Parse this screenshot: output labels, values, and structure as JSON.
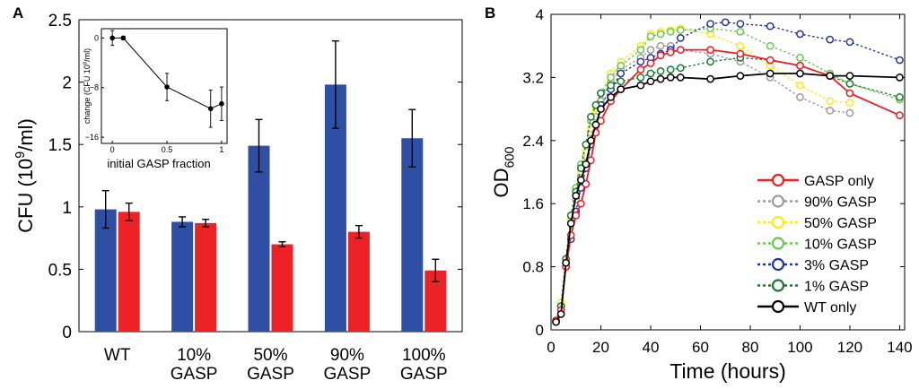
{
  "chart_data": [
    {
      "type": "bar",
      "panel_label": "A",
      "ylabel_parts": [
        "CFU (10",
        "9",
        "/ml)"
      ],
      "ylim": [
        0,
        2.5
      ],
      "yticks": [
        "0",
        "0.5",
        "1",
        "1.5",
        "2",
        "2.5"
      ],
      "categories": [
        [
          "WT"
        ],
        [
          "10%",
          "GASP"
        ],
        [
          "50%",
          "GASP"
        ],
        [
          "90%",
          "GASP"
        ],
        [
          "100%",
          "GASP"
        ]
      ],
      "series": [
        {
          "color": "#2E4FA3",
          "values": [
            0.98,
            0.88,
            1.49,
            1.98,
            1.55
          ],
          "err": [
            0.15,
            0.04,
            0.21,
            0.35,
            0.23
          ]
        },
        {
          "color": "#EC2227",
          "values": [
            0.96,
            0.87,
            0.7,
            0.8,
            0.49
          ],
          "err": [
            0.07,
            0.03,
            0.02,
            0.05,
            0.09
          ]
        }
      ],
      "inset": {
        "type": "line",
        "xlabel": "initial GASP fraction",
        "ylabel_parts": [
          "change (CFU 10",
          "8",
          "/ml)"
        ],
        "xlim": [
          -0.1,
          1.05
        ],
        "ylim": [
          -17,
          1.5
        ],
        "xticks": [
          "0",
          "0.5",
          "1"
        ],
        "yticks": [
          "0",
          "−8",
          "−16"
        ],
        "x": [
          0,
          0.1,
          0.5,
          0.9,
          1.0
        ],
        "y": [
          0,
          0,
          -7.9,
          -11.4,
          -10.6
        ],
        "err": [
          1.2,
          0.3,
          2.2,
          3.0,
          2.7
        ]
      }
    },
    {
      "type": "line",
      "panel_label": "B",
      "xlabel": "Time (hours)",
      "ylabel_parts": [
        "OD",
        "600"
      ],
      "xlim": [
        0,
        142
      ],
      "ylim": [
        0,
        4
      ],
      "xticks": [
        "0",
        "20",
        "40",
        "60",
        "80",
        "100",
        "120",
        "140"
      ],
      "yticks": [
        "0",
        "0.8",
        "1.6",
        "2.4",
        "3.2",
        "4"
      ],
      "legend_position": "bottom-right",
      "series": [
        {
          "name": "GASP only",
          "color": "#EE1C25",
          "dash": "solid",
          "x": [
            2,
            4,
            6,
            8,
            10,
            12,
            14,
            16,
            18,
            20,
            24,
            28,
            36,
            40,
            44,
            48,
            52,
            64,
            76,
            88,
            100,
            112,
            120,
            140
          ],
          "y": [
            0.12,
            0.25,
            0.8,
            1.2,
            1.45,
            1.6,
            1.85,
            2.15,
            2.5,
            2.65,
            2.9,
            3.05,
            3.3,
            3.38,
            3.48,
            3.52,
            3.55,
            3.55,
            3.5,
            3.42,
            3.35,
            3.22,
            3.0,
            2.72
          ]
        },
        {
          "name": "90% GASP",
          "color": "#9B9B9B",
          "dash": "dotted",
          "x": [
            2,
            4,
            6,
            8,
            10,
            12,
            14,
            16,
            18,
            20,
            24,
            28,
            36,
            40,
            44,
            48,
            52,
            64,
            76,
            88,
            100,
            112,
            120
          ],
          "y": [
            0.1,
            0.3,
            0.85,
            1.4,
            1.65,
            1.95,
            2.2,
            2.5,
            2.7,
            2.9,
            3.15,
            3.3,
            3.45,
            3.55,
            3.6,
            3.6,
            3.55,
            3.5,
            3.4,
            3.2,
            2.95,
            2.78,
            2.75
          ]
        },
        {
          "name": "50% GASP",
          "color": "#F7EC13",
          "dash": "dotted",
          "x": [
            2,
            4,
            6,
            8,
            10,
            12,
            14,
            16,
            18,
            20,
            24,
            28,
            36,
            40,
            44,
            48,
            52,
            64,
            76,
            88,
            100,
            112,
            120
          ],
          "y": [
            0.1,
            0.35,
            0.9,
            1.4,
            1.7,
            2.0,
            2.25,
            2.55,
            2.8,
            3.0,
            3.25,
            3.4,
            3.6,
            3.75,
            3.78,
            3.8,
            3.82,
            3.75,
            3.6,
            3.35,
            3.1,
            2.9,
            2.88
          ]
        },
        {
          "name": "10% GASP",
          "color": "#68C94F",
          "dash": "dotted",
          "x": [
            2,
            4,
            6,
            8,
            10,
            12,
            14,
            16,
            18,
            20,
            24,
            28,
            36,
            40,
            44,
            48,
            52,
            64,
            76,
            88,
            100,
            112,
            120,
            140
          ],
          "y": [
            0.1,
            0.3,
            0.85,
            1.45,
            1.8,
            2.1,
            2.35,
            2.65,
            2.85,
            3.0,
            3.2,
            3.35,
            3.55,
            3.72,
            3.75,
            3.78,
            3.8,
            3.82,
            3.78,
            3.6,
            3.45,
            3.25,
            3.12,
            2.92
          ]
        },
        {
          "name": "3% GASP",
          "color": "#24349B",
          "dash": "dotted",
          "x": [
            2,
            4,
            6,
            8,
            10,
            12,
            14,
            16,
            18,
            20,
            24,
            28,
            36,
            40,
            44,
            48,
            52,
            64,
            70,
            76,
            88,
            100,
            112,
            120,
            140
          ],
          "y": [
            0.1,
            0.3,
            0.8,
            1.15,
            1.5,
            1.8,
            2.05,
            2.35,
            2.6,
            2.85,
            3.05,
            3.25,
            3.4,
            3.45,
            3.5,
            3.55,
            3.7,
            3.88,
            3.9,
            3.88,
            3.85,
            3.75,
            3.68,
            3.65,
            3.42
          ]
        },
        {
          "name": "1% GASP",
          "color": "#187A32",
          "dash": "dotted",
          "x": [
            2,
            4,
            6,
            8,
            10,
            12,
            14,
            16,
            18,
            20,
            24,
            28,
            36,
            40,
            44,
            48,
            52,
            64,
            76,
            88,
            100,
            112,
            120,
            140
          ],
          "y": [
            0.1,
            0.3,
            0.9,
            1.45,
            1.75,
            2.05,
            2.35,
            2.7,
            2.85,
            3.0,
            3.1,
            3.15,
            3.2,
            3.25,
            3.28,
            3.3,
            3.32,
            3.4,
            3.45,
            3.42,
            3.35,
            3.22,
            3.12,
            2.95
          ]
        },
        {
          "name": "WT only",
          "color": "#000000",
          "dash": "solid",
          "x": [
            2,
            4,
            6,
            8,
            10,
            12,
            14,
            16,
            18,
            20,
            24,
            28,
            36,
            40,
            44,
            48,
            52,
            64,
            76,
            88,
            100,
            112,
            120,
            140
          ],
          "y": [
            0.1,
            0.2,
            0.85,
            1.35,
            1.7,
            1.9,
            2.1,
            2.4,
            2.6,
            2.8,
            2.95,
            3.05,
            3.1,
            3.15,
            3.18,
            3.2,
            3.2,
            3.18,
            3.22,
            3.25,
            3.25,
            3.22,
            3.22,
            3.2
          ]
        }
      ]
    }
  ]
}
